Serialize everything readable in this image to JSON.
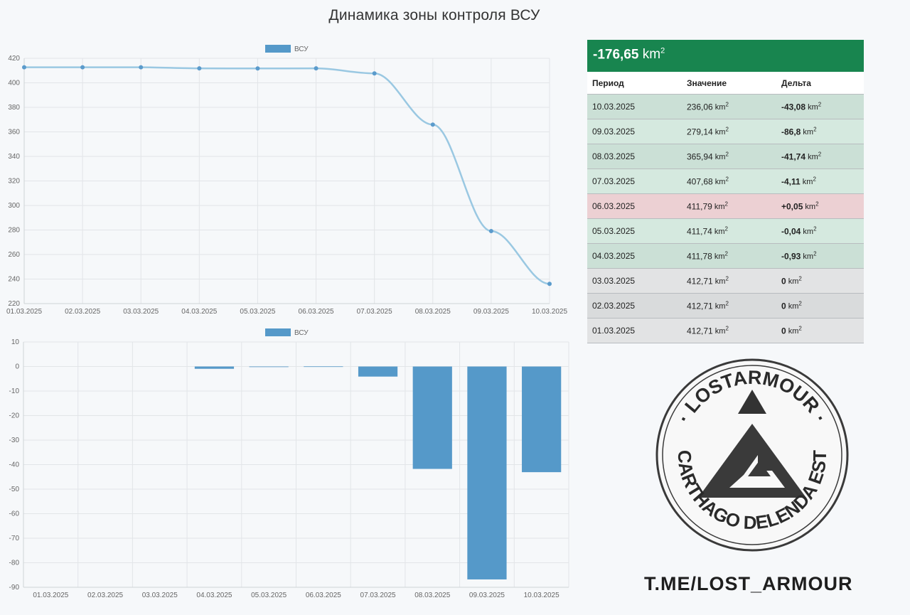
{
  "page_title": "Динамика зоны контроля ВСУ",
  "summary": {
    "value": "-176,65",
    "unit": "km"
  },
  "colors": {
    "line": "#9ac8e2",
    "point": "#5b9bcc",
    "bar": "#5599c9",
    "header_green": "#18854f",
    "row_green_dark": "#cbe0d6",
    "row_green_light": "#d5e9df",
    "row_red": "#ecd0d3",
    "row_gray_dark": "#d9dbdc",
    "row_gray_light": "#e2e3e4"
  },
  "table": {
    "headers": [
      "Период",
      "Значение",
      "Дельта"
    ],
    "unit": "km",
    "rows": [
      {
        "period": "10.03.2025",
        "value": "236,06",
        "delta": "-43,08",
        "tone": "row_green_dark"
      },
      {
        "period": "09.03.2025",
        "value": "279,14",
        "delta": "-86,8",
        "tone": "row_green_light"
      },
      {
        "period": "08.03.2025",
        "value": "365,94",
        "delta": "-41,74",
        "tone": "row_green_dark"
      },
      {
        "period": "07.03.2025",
        "value": "407,68",
        "delta": "-4,11",
        "tone": "row_green_light"
      },
      {
        "period": "06.03.2025",
        "value": "411,79",
        "delta": "+0,05",
        "tone": "row_red"
      },
      {
        "period": "05.03.2025",
        "value": "411,74",
        "delta": "-0,04",
        "tone": "row_green_light"
      },
      {
        "period": "04.03.2025",
        "value": "411,78",
        "delta": "-0,93",
        "tone": "row_green_dark"
      },
      {
        "period": "03.03.2025",
        "value": "412,71",
        "delta": "0",
        "tone": "row_gray_light"
      },
      {
        "period": "02.03.2025",
        "value": "412,71",
        "delta": "0",
        "tone": "row_gray_dark"
      },
      {
        "period": "01.03.2025",
        "value": "412,71",
        "delta": "0",
        "tone": "row_gray_light"
      }
    ]
  },
  "logo": {
    "top_text": "· LOSTARMOUR ·",
    "bottom_text": "CARTHAGO DELENDA EST"
  },
  "brand_link": "T.ME/LOST_ARMOUR",
  "chart_data": [
    {
      "type": "line",
      "legend": [
        "ВСУ"
      ],
      "categories": [
        "01.03.2025",
        "02.03.2025",
        "03.03.2025",
        "04.03.2025",
        "05.03.2025",
        "06.03.2025",
        "07.03.2025",
        "08.03.2025",
        "09.03.2025",
        "10.03.2025"
      ],
      "series": [
        {
          "name": "ВСУ",
          "values": [
            412.71,
            412.71,
            412.71,
            411.78,
            411.74,
            411.79,
            407.68,
            365.94,
            279.14,
            236.06
          ]
        }
      ],
      "ylim": [
        220,
        420
      ],
      "yticks": [
        220,
        240,
        260,
        280,
        300,
        320,
        340,
        360,
        380,
        400,
        420
      ],
      "grid": true,
      "legend_position": "top"
    },
    {
      "type": "bar",
      "legend": [
        "ВСУ"
      ],
      "categories": [
        "01.03.2025",
        "02.03.2025",
        "03.03.2025",
        "04.03.2025",
        "05.03.2025",
        "06.03.2025",
        "07.03.2025",
        "08.03.2025",
        "09.03.2025",
        "10.03.2025"
      ],
      "series": [
        {
          "name": "ВСУ",
          "values": [
            0,
            0,
            0,
            -0.93,
            -0.04,
            0.05,
            -4.11,
            -41.74,
            -86.8,
            -43.08
          ]
        }
      ],
      "ylim": [
        -90,
        10
      ],
      "yticks": [
        -90,
        -80,
        -70,
        -60,
        -50,
        -40,
        -30,
        -20,
        -10,
        0,
        10
      ],
      "grid": true,
      "legend_position": "top"
    }
  ]
}
